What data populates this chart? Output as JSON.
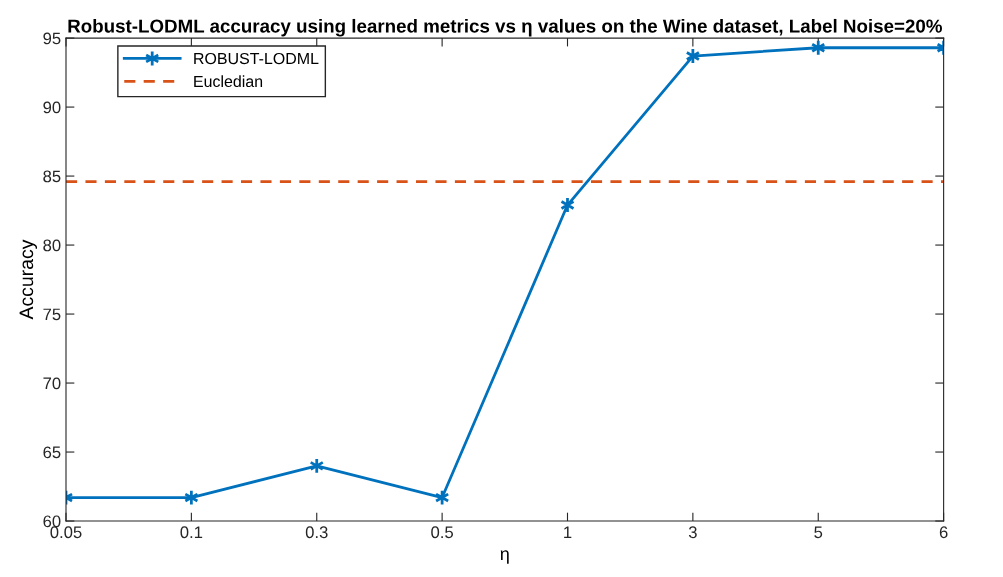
{
  "chart_data": {
    "type": "line",
    "title": "Robust-LODML accuracy using learned metrics vs η values on the Wine dataset, Label Noise=20%",
    "xlabel": "η",
    "ylabel": "Accuracy",
    "categories": [
      "0.05",
      "0.1",
      "0.3",
      "0.5",
      "1",
      "3",
      "5",
      "6"
    ],
    "series": [
      {
        "name": "ROBUST-LODML",
        "color": "#0072bd",
        "values": [
          61.7,
          61.7,
          64.0,
          61.7,
          82.9,
          93.7,
          94.3,
          94.3
        ]
      }
    ],
    "ref_lines": [
      {
        "axis": "y",
        "value": 84.6,
        "label": "Eucledian",
        "color": "#d95319",
        "line_style": "dashed"
      }
    ],
    "ylim": [
      60,
      95
    ],
    "yticks": [
      60,
      65,
      70,
      75,
      80,
      85,
      90,
      95
    ],
    "marker": "cross",
    "line_style": "solid",
    "legend": "top left",
    "grid": false
  }
}
